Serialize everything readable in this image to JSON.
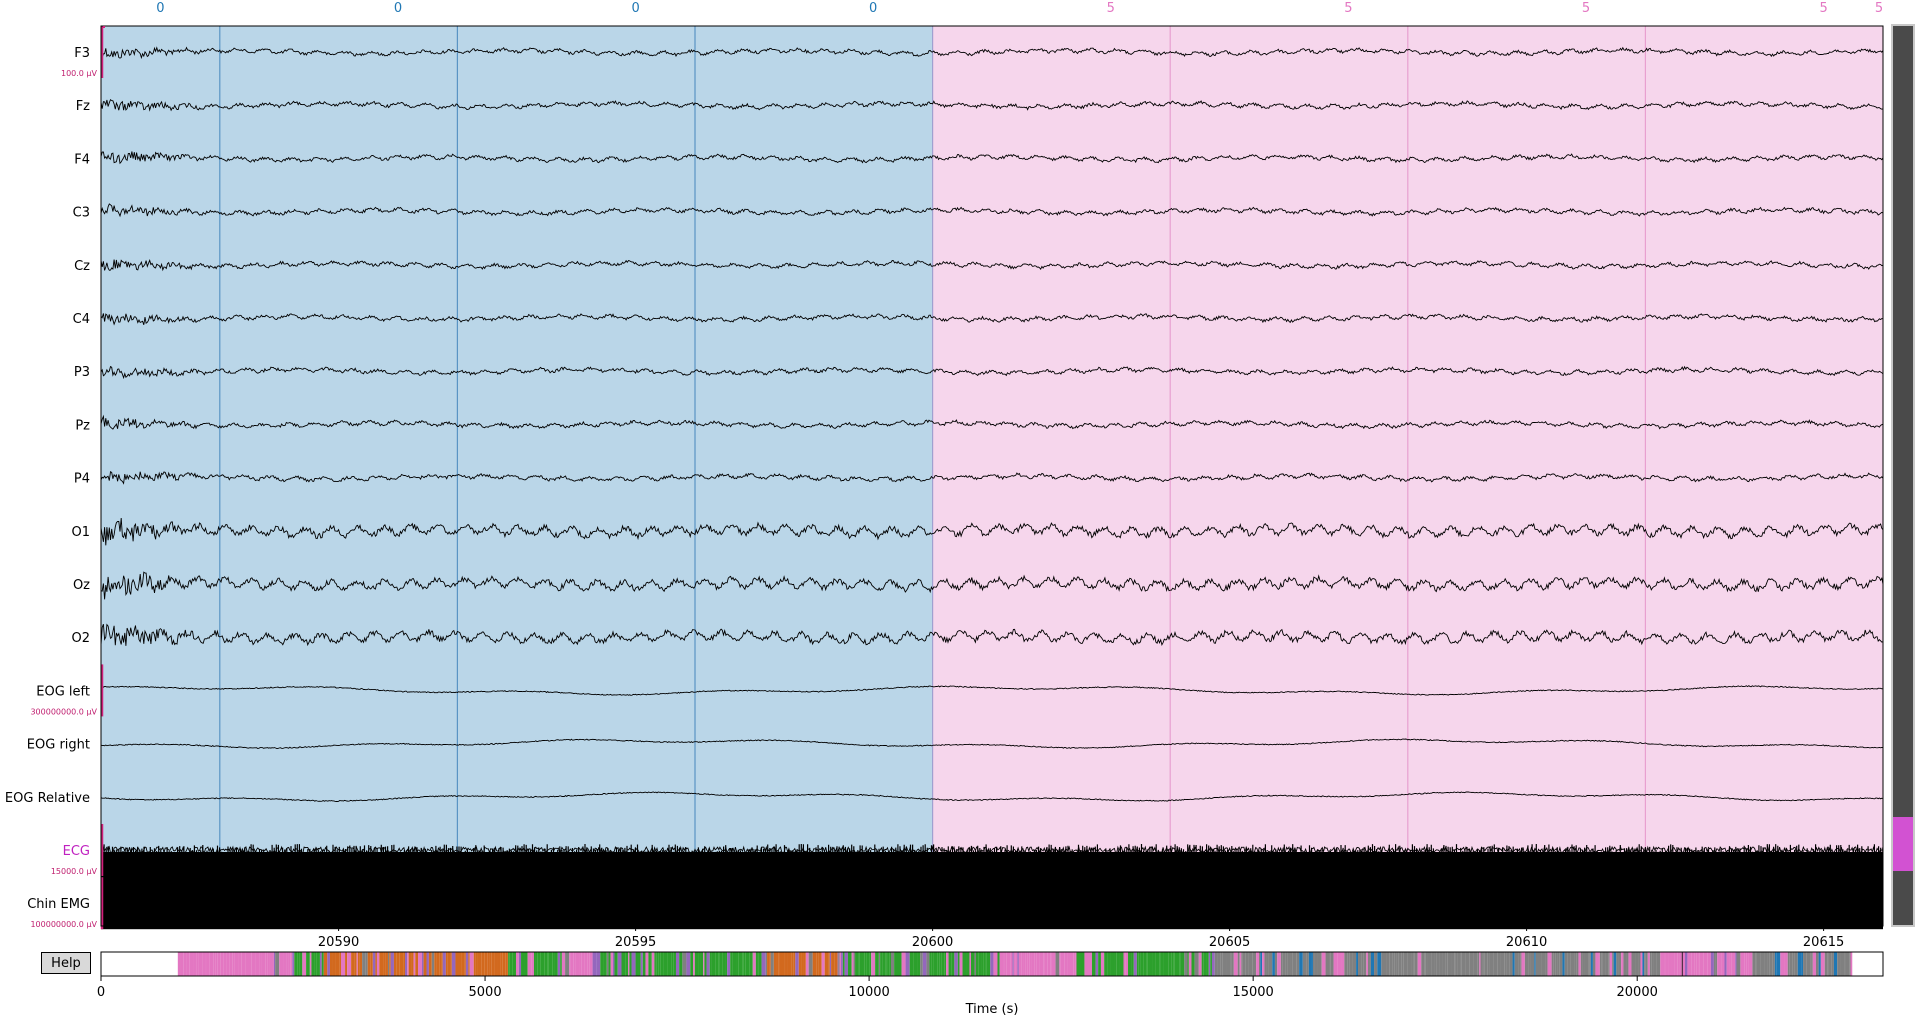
{
  "help_label": "Help",
  "xlabel": "Time (s)",
  "chart_data": [
    {
      "type": "line",
      "panel": "traces",
      "xlim": [
        20586,
        20616
      ],
      "tick_values": [
        20590,
        20595,
        20600,
        20605,
        20610,
        20615
      ],
      "tick_labels": [
        "20590",
        "20595",
        "20600",
        "20605",
        "20610",
        "20615"
      ],
      "channels": [
        {
          "name": "F3",
          "color": "#000000",
          "label_color": "#000000",
          "kind": "eeg",
          "mark": "eeg"
        },
        {
          "name": "Fz",
          "color": "#000000",
          "label_color": "#000000",
          "kind": "eeg"
        },
        {
          "name": "F4",
          "color": "#000000",
          "label_color": "#000000",
          "kind": "eeg"
        },
        {
          "name": "C3",
          "color": "#000000",
          "label_color": "#000000",
          "kind": "eeg"
        },
        {
          "name": "Cz",
          "color": "#000000",
          "label_color": "#000000",
          "kind": "eeg"
        },
        {
          "name": "C4",
          "color": "#000000",
          "label_color": "#000000",
          "kind": "eeg"
        },
        {
          "name": "P3",
          "color": "#000000",
          "label_color": "#000000",
          "kind": "eeg"
        },
        {
          "name": "Pz",
          "color": "#000000",
          "label_color": "#000000",
          "kind": "eeg"
        },
        {
          "name": "P4",
          "color": "#000000",
          "label_color": "#000000",
          "kind": "eeg"
        },
        {
          "name": "O1",
          "color": "#000000",
          "label_color": "#000000",
          "kind": "occ"
        },
        {
          "name": "Oz",
          "color": "#000000",
          "label_color": "#000000",
          "kind": "occ"
        },
        {
          "name": "O2",
          "color": "#000000",
          "label_color": "#000000",
          "kind": "occ"
        },
        {
          "name": "EOG left",
          "color": "#000000",
          "label_color": "#000000",
          "kind": "eog",
          "mark": "eog"
        },
        {
          "name": "EOG right",
          "color": "#000000",
          "label_color": "#000000",
          "kind": "eog"
        },
        {
          "name": "EOG Relative",
          "color": "#000000",
          "label_color": "#000000",
          "kind": "eog"
        },
        {
          "name": "ECG",
          "color": "#000000",
          "label_color": "#c020c0",
          "kind": "ecg",
          "mark": "ecg"
        },
        {
          "name": "Chin EMG",
          "color": "#000000",
          "label_color": "#000000",
          "kind": "emg",
          "mark": "emg"
        }
      ],
      "scale_bars": {
        "eeg": "100.0 µV",
        "eog": "300000000.0 µV",
        "ecg": "15000.0 µV",
        "emg": "100000000.0 µV"
      },
      "epochs": [
        {
          "start": 20586.0,
          "end": 20600.0,
          "label": "0",
          "color": "#1f77b4",
          "fill": "#bad6e8"
        },
        {
          "start": 20600.0,
          "end": 20616.0,
          "label": "5",
          "color": "#e377c2",
          "fill": "#f6d6ec"
        }
      ],
      "stage_markers": [
        {
          "x": 20587.0,
          "label": "0",
          "color": "#1f77b4"
        },
        {
          "x": 20591.0,
          "label": "0",
          "color": "#1f77b4"
        },
        {
          "x": 20595.0,
          "label": "0",
          "color": "#1f77b4"
        },
        {
          "x": 20599.0,
          "label": "0",
          "color": "#1f77b4"
        },
        {
          "x": 20603.0,
          "label": "5",
          "color": "#e377c2"
        },
        {
          "x": 20607.0,
          "label": "5",
          "color": "#e377c2"
        },
        {
          "x": 20611.0,
          "label": "5",
          "color": "#e377c2"
        },
        {
          "x": 20615.0,
          "label": "5",
          "color": "#e377c2"
        },
        {
          "x": 20616.0,
          "label": "5",
          "color": "#e377c2"
        }
      ],
      "epoch_lines": [
        20588,
        20592,
        20596,
        20600,
        20604,
        20608,
        20612
      ],
      "grid": false
    },
    {
      "type": "heatmap",
      "panel": "overview",
      "xlim": [
        0,
        23200
      ],
      "xlabel": "Time (s)",
      "tick_values": [
        0,
        5000,
        10000,
        15000,
        20000
      ],
      "tick_labels": [
        "0",
        "5000",
        "10000",
        "15000",
        "20000"
      ],
      "stage_colors": {
        "wake": "#808080",
        "n1": "#e377c2",
        "n2": "#2ca02c",
        "n3": "#d2691e",
        "rem": "#9467bd",
        "arousal": "#1f77b4"
      },
      "segments": [
        {
          "start": 0,
          "end": 1000,
          "stage": "none"
        },
        {
          "start": 1000,
          "end": 2500,
          "stage": "n1"
        },
        {
          "start": 2500,
          "end": 2900,
          "stage": "n2"
        },
        {
          "start": 2900,
          "end": 4200,
          "stage": "n3"
        },
        {
          "start": 4200,
          "end": 5300,
          "stage": "n3"
        },
        {
          "start": 5300,
          "end": 6000,
          "stage": "n2"
        },
        {
          "start": 6000,
          "end": 6400,
          "stage": "n1"
        },
        {
          "start": 6400,
          "end": 8600,
          "stage": "n2"
        },
        {
          "start": 8600,
          "end": 9600,
          "stage": "n3"
        },
        {
          "start": 9600,
          "end": 11700,
          "stage": "n2"
        },
        {
          "start": 11700,
          "end": 12700,
          "stage": "n1"
        },
        {
          "start": 12700,
          "end": 14500,
          "stage": "n2"
        },
        {
          "start": 14500,
          "end": 18000,
          "stage": "wake"
        },
        {
          "start": 18000,
          "end": 20300,
          "stage": "wake"
        },
        {
          "start": 20300,
          "end": 21500,
          "stage": "n1"
        },
        {
          "start": 21500,
          "end": 22800,
          "stage": "wake"
        },
        {
          "start": 22800,
          "end": 23200,
          "stage": "none"
        }
      ],
      "current_window": [
        20586,
        20616
      ]
    }
  ],
  "scrollbar": {
    "thumb_color": "#d252d2",
    "thumb_start_fraction": 0.88,
    "thumb_size_fraction": 0.06
  }
}
